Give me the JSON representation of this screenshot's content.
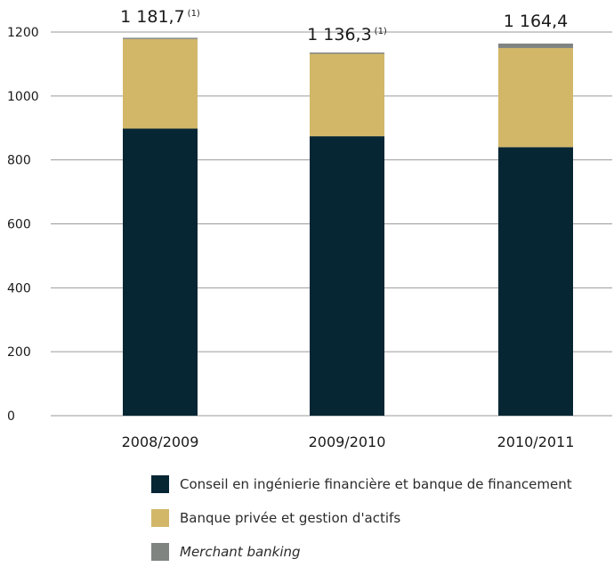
{
  "chart_data": {
    "type": "bar",
    "stacked": true,
    "categories": [
      "2008/2009",
      "2009/2010",
      "2010/2011"
    ],
    "series": [
      {
        "name": "Conseil en ingénierie financière et banque de financement",
        "color": "#062634",
        "values": [
          898,
          874,
          840
        ]
      },
      {
        "name": "Banque privée et gestion d'actifs",
        "color": "#d2b769",
        "values": [
          280,
          258,
          310
        ]
      },
      {
        "name": "Merchant banking",
        "color": "#7f8481",
        "values": [
          4,
          4,
          14
        ]
      }
    ],
    "totals": [
      "1 181,7",
      "1 136,3",
      "1 164,4"
    ],
    "total_notes": [
      "(1)",
      "(1)",
      ""
    ],
    "ylim": [
      0,
      1200
    ],
    "yticks": [
      "0",
      "200",
      "400",
      "600",
      "800",
      "1000",
      "1200"
    ],
    "grid": true,
    "legend_position": "bottom"
  }
}
